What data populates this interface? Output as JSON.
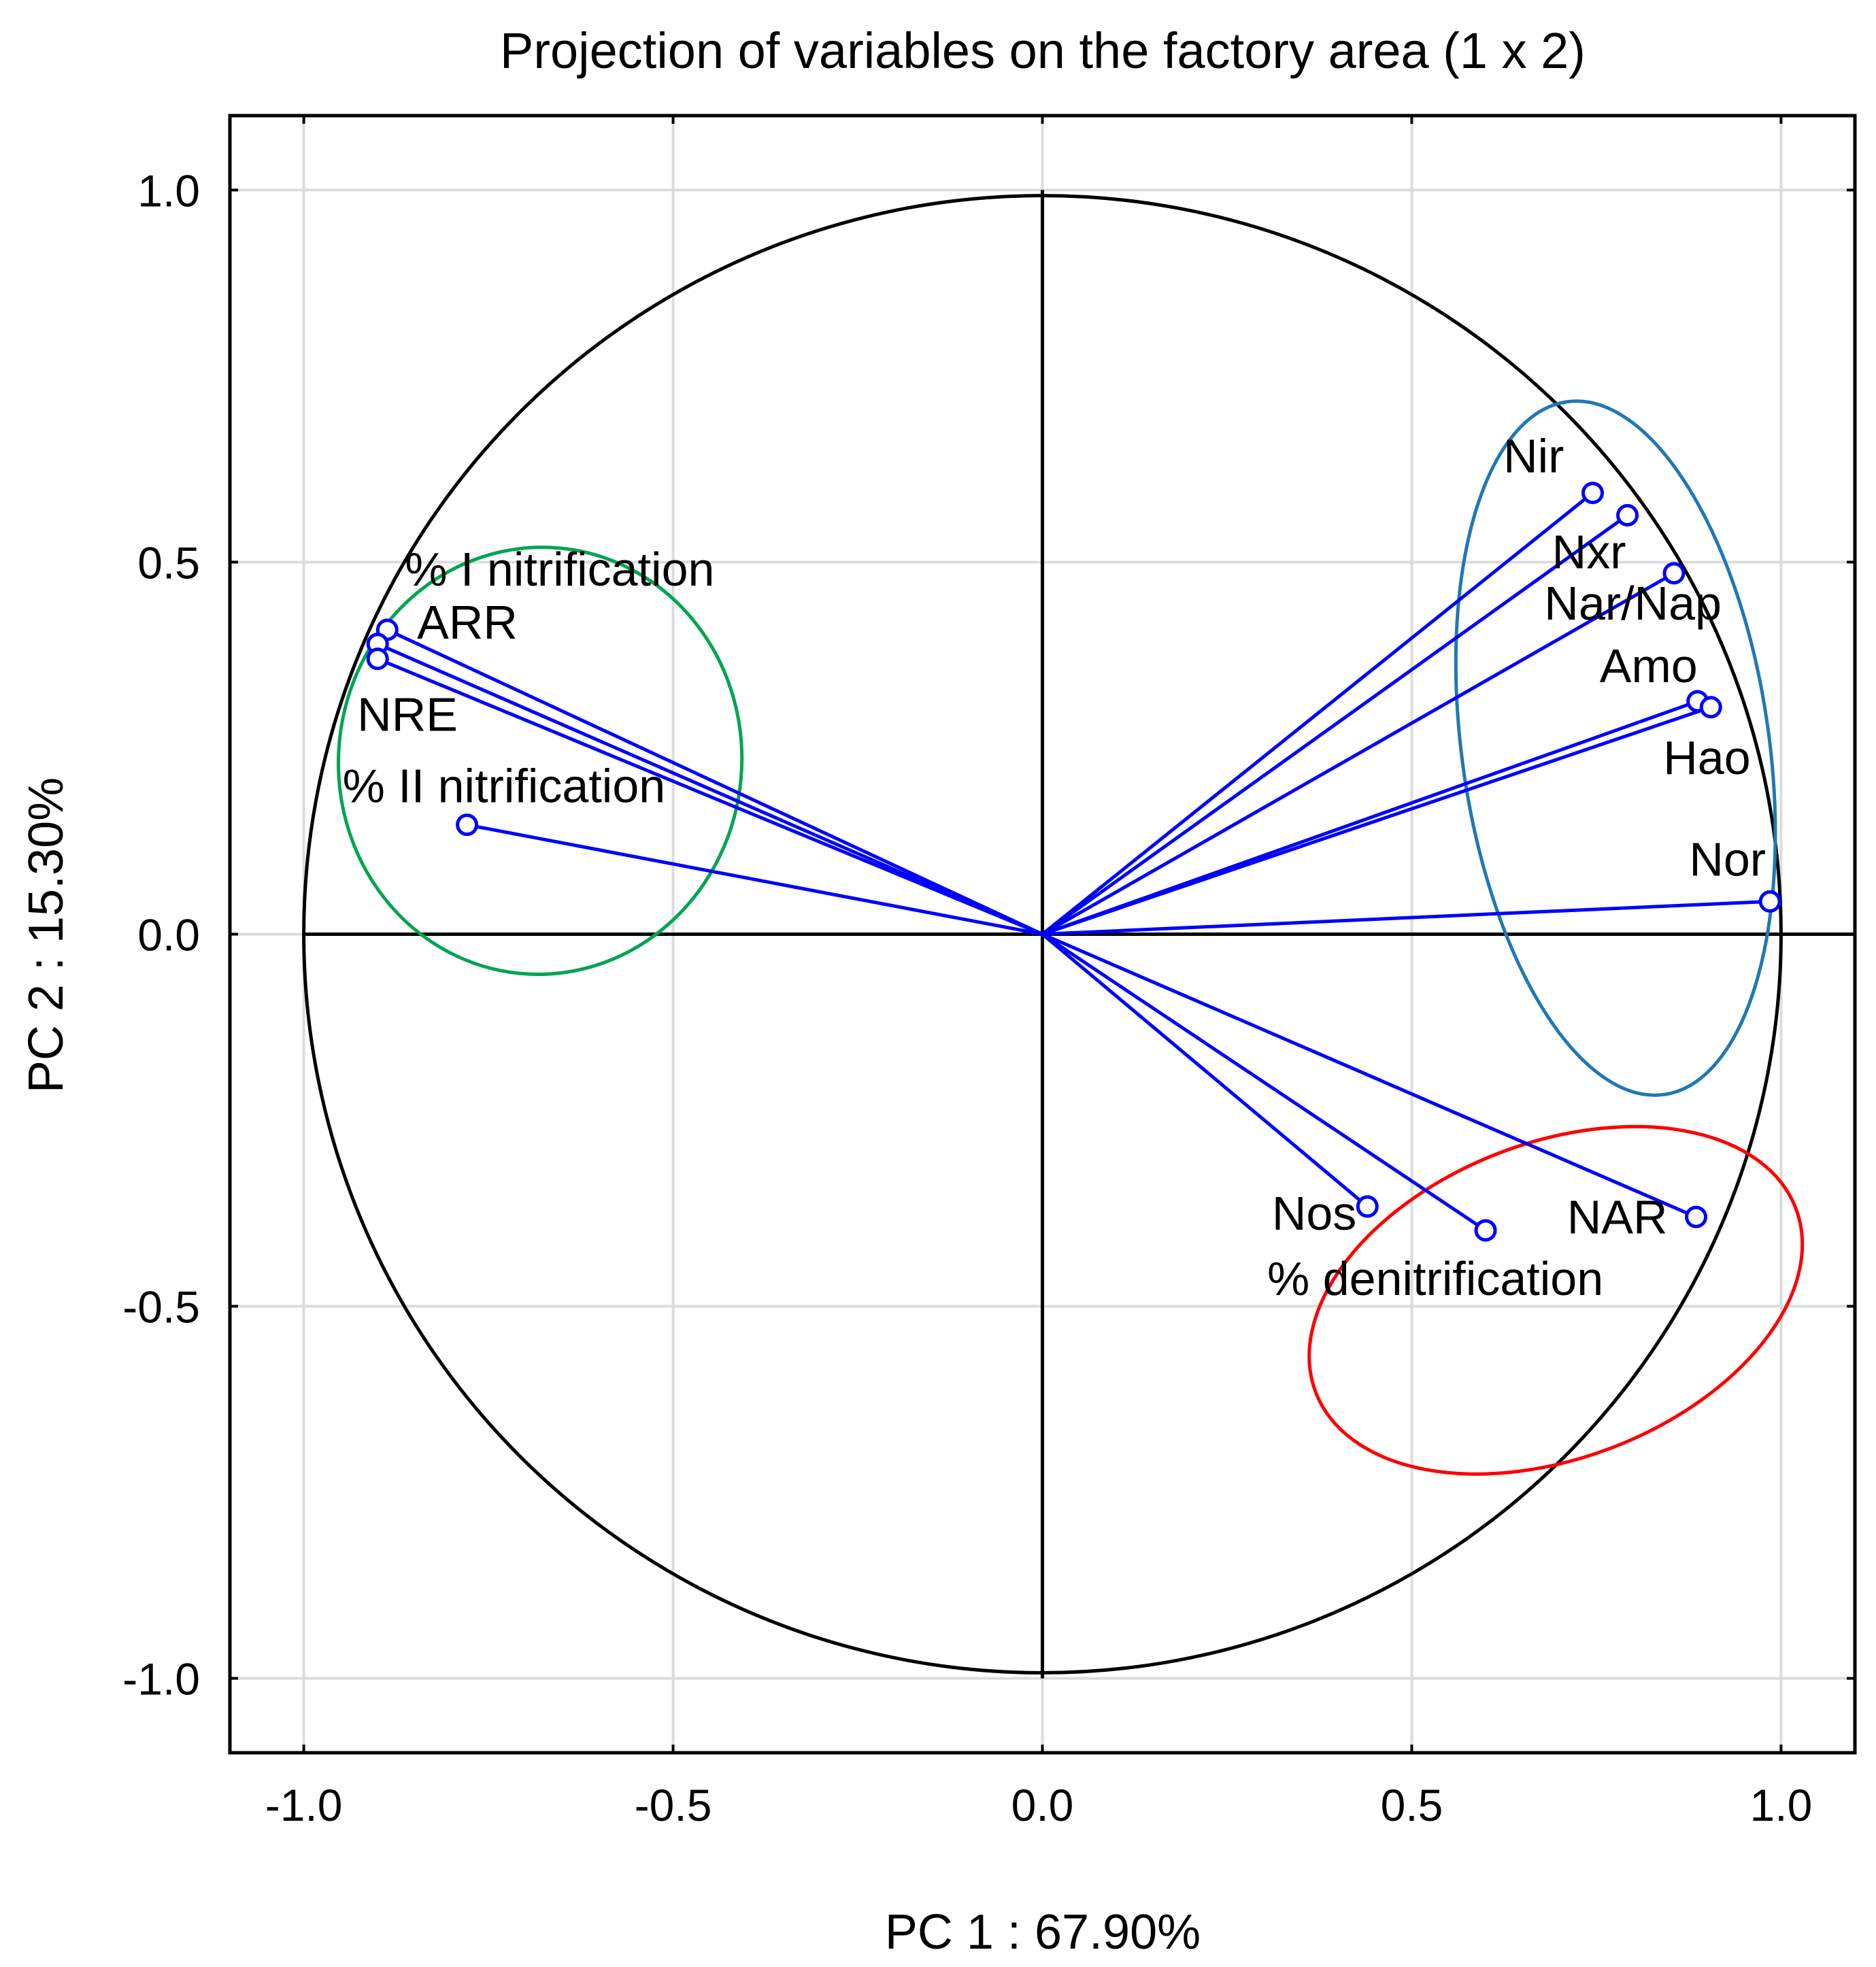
{
  "chart_data": {
    "type": "scatter",
    "title": "Projection of variables on the factory area (1 x 2)",
    "xlabel": "PC 1 : 67.90%",
    "ylabel": "PC 2 : 15.30%",
    "xlim": [
      -1.1,
      1.1
    ],
    "ylim": [
      -1.1,
      1.1
    ],
    "grid": true,
    "xticks": [
      -1.0,
      -0.5,
      0.0,
      0.5,
      1.0
    ],
    "yticks": [
      -1.0,
      -0.5,
      0.0,
      0.5,
      1.0
    ],
    "xtick_labels": [
      "-1.0",
      "-0.5",
      "0.0",
      "0.5",
      "1.0"
    ],
    "ytick_labels": [
      "-1.0",
      "-0.5",
      "0.0",
      "0.5",
      "1.0"
    ],
    "unit_circle_radius": 1.0,
    "points": [
      {
        "name": "Nir",
        "x": 0.745,
        "y": 0.593
      },
      {
        "name": "Nxr",
        "x": 0.792,
        "y": 0.563
      },
      {
        "name": "Nar/Nap",
        "x": 0.855,
        "y": 0.485
      },
      {
        "name": "Amo",
        "x": 0.887,
        "y": 0.313
      },
      {
        "name": "Hao",
        "x": 0.905,
        "y": 0.305
      },
      {
        "name": "Nor",
        "x": 0.985,
        "y": 0.044
      },
      {
        "name": "% I nitrification",
        "x": -0.887,
        "y": 0.409
      },
      {
        "name": "ARR",
        "x": -0.9,
        "y": 0.39
      },
      {
        "name": "NRE",
        "x": -0.9,
        "y": 0.37
      },
      {
        "name": "% II nitrification",
        "x": -0.779,
        "y": 0.147
      },
      {
        "name": "Nos",
        "x": 0.44,
        "y": -0.366
      },
      {
        "name": "% denitrification",
        "x": 0.6,
        "y": -0.398
      },
      {
        "name": "NAR",
        "x": 0.885,
        "y": -0.38
      }
    ],
    "group_ellipses": [
      {
        "color": "#00a550",
        "cx": -0.68,
        "cy": 0.233,
        "rx": 0.273,
        "ry": 0.287,
        "rotate_deg": 5
      },
      {
        "color": "#1f78b4",
        "cx": 0.776,
        "cy": 0.25,
        "rx": 0.208,
        "ry": 0.47,
        "rotate_deg": -8
      },
      {
        "color": "#ff0000",
        "cx": 0.695,
        "cy": -0.492,
        "rx": 0.348,
        "ry": 0.212,
        "rotate_deg": -21
      }
    ],
    "colors": {
      "vector": "#0000ff",
      "axis": "#000000",
      "grid": "#dcdcdc"
    }
  }
}
